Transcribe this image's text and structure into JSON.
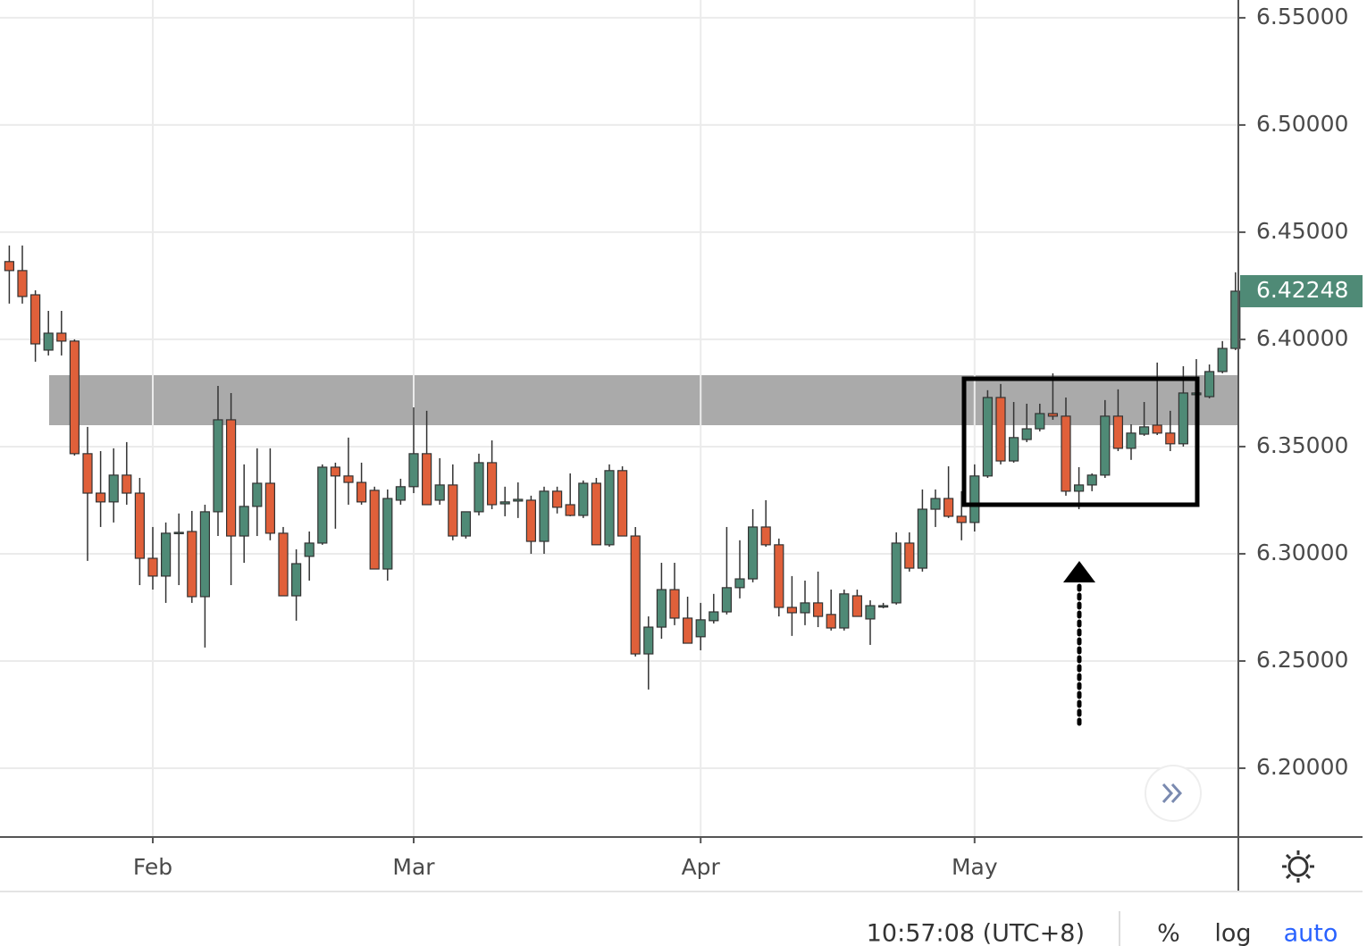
{
  "chart_data": {
    "type": "candlestick",
    "categories": [
      null,
      null,
      null,
      null,
      null,
      null,
      null,
      null,
      null,
      null,
      null,
      "Feb",
      null,
      null,
      null,
      null,
      null,
      null,
      null,
      null,
      null,
      null,
      null,
      null,
      null,
      null,
      null,
      null,
      null,
      null,
      null,
      "Mar",
      null,
      null,
      null,
      null,
      null,
      null,
      null,
      null,
      null,
      null,
      null,
      null,
      null,
      null,
      null,
      null,
      null,
      null,
      null,
      null,
      null,
      "Apr",
      null,
      null,
      null,
      null,
      null,
      null,
      null,
      null,
      null,
      null,
      null,
      null,
      null,
      null,
      null,
      null,
      null,
      null,
      null,
      null,
      "May",
      null,
      null,
      null,
      null,
      null,
      null,
      null,
      null,
      null,
      null,
      null,
      null,
      null,
      null,
      null,
      null,
      null,
      null,
      null,
      null
    ],
    "open": [
      6.4363,
      6.4321,
      6.4208,
      6.395,
      6.4029,
      6.3992,
      6.3467,
      6.3283,
      6.3242,
      6.3367,
      6.3283,
      6.2979,
      6.2896,
      6.3096,
      6.3104,
      6.28,
      6.3196,
      6.3625,
      6.3083,
      6.3221,
      6.3329,
      6.3096,
      6.2804,
      6.2988,
      6.305,
      6.3404,
      6.3363,
      6.3333,
      6.3296,
      6.2929,
      6.325,
      6.3313,
      6.3467,
      6.325,
      6.3321,
      6.3083,
      6.3196,
      6.3425,
      6.3233,
      6.3246,
      6.325,
      6.3058,
      6.3292,
      6.3229,
      6.3179,
      6.3329,
      6.3042,
      6.3388,
      6.3083,
      6.2533,
      6.2658,
      6.2833,
      6.27,
      6.2613,
      6.2688,
      6.2729,
      6.2842,
      6.2883,
      6.3125,
      6.3042,
      6.275,
      6.2725,
      6.2771,
      6.2717,
      6.2654,
      6.2804,
      6.2696,
      6.2754,
      6.2771,
      6.305,
      6.2933,
      6.3208,
      6.3258,
      6.3175,
      6.3146,
      6.3363,
      6.3729,
      6.3433,
      6.3533,
      6.3583,
      6.3654,
      6.3642,
      6.3292,
      6.3321,
      6.3367,
      6.3642,
      6.3492,
      6.3558,
      6.36,
      6.3563,
      6.3513,
      6.3742,
      6.3733,
      6.385,
      6.3958
    ],
    "high": [
      6.4438,
      6.4438,
      6.4229,
      6.4133,
      6.4133,
      6.4,
      6.3592,
      6.3479,
      6.3492,
      6.3521,
      6.3354,
      6.3125,
      6.3146,
      6.3188,
      6.32,
      6.3229,
      6.3783,
      6.375,
      6.3417,
      6.3492,
      6.3492,
      6.3125,
      6.3021,
      6.3104,
      6.3417,
      6.3425,
      6.3542,
      6.3425,
      6.3313,
      6.33,
      6.335,
      6.3683,
      6.3667,
      6.3446,
      6.3417,
      6.3196,
      6.3467,
      6.3529,
      6.3313,
      6.3333,
      6.3271,
      6.3313,
      6.3313,
      6.3375,
      6.3342,
      6.3354,
      6.3417,
      6.3408,
      6.3125,
      6.2708,
      6.2958,
      6.2958,
      6.28,
      6.2771,
      6.2813,
      6.3125,
      6.3063,
      6.3208,
      6.325,
      6.3071,
      6.2896,
      6.2875,
      6.2917,
      6.2833,
      6.2833,
      6.2833,
      6.2783,
      6.2771,
      6.31,
      6.31,
      6.33,
      6.33,
      6.3408,
      6.3292,
      6.3417,
      6.3763,
      6.3792,
      6.3708,
      6.37,
      6.37,
      6.3842,
      6.3729,
      6.3404,
      6.3375,
      6.3717,
      6.3767,
      6.3604,
      6.3708,
      6.3892,
      6.3667,
      6.3875,
      6.3908,
      6.3883,
      6.3992,
      6.4313
    ],
    "low": [
      6.4167,
      6.4167,
      6.3896,
      6.3925,
      6.3925,
      6.3458,
      6.2967,
      6.3125,
      6.3146,
      6.3229,
      6.2854,
      6.2833,
      6.2771,
      6.2854,
      6.2771,
      6.2563,
      6.3083,
      6.2854,
      6.2958,
      6.3083,
      6.3063,
      6.2804,
      6.2688,
      6.2875,
      6.3042,
      6.3117,
      6.3229,
      6.3229,
      6.2929,
      6.2875,
      6.3229,
      6.3283,
      6.3229,
      6.3229,
      6.3063,
      6.3071,
      6.3179,
      6.3208,
      6.3175,
      6.3167,
      6.3,
      6.3,
      6.3188,
      6.3175,
      6.3167,
      6.3042,
      6.3033,
      6.3083,
      6.2521,
      6.2367,
      6.2604,
      6.2667,
      6.2583,
      6.255,
      6.2675,
      6.2717,
      6.2792,
      6.2867,
      6.3033,
      6.2708,
      6.2617,
      6.2667,
      6.2658,
      6.2642,
      6.2642,
      6.2708,
      6.2575,
      6.2746,
      6.2763,
      6.2917,
      6.2917,
      6.3125,
      6.3167,
      6.3063,
      6.3104,
      6.3354,
      6.3417,
      6.3425,
      6.3521,
      6.3571,
      6.3625,
      6.3271,
      6.3208,
      6.3292,
      6.3354,
      6.3479,
      6.3438,
      6.355,
      6.3554,
      6.3479,
      6.35,
      6.3729,
      6.3725,
      6.3842,
      6.395
    ],
    "close": [
      6.4321,
      6.42,
      6.3979,
      6.4029,
      6.3992,
      6.3467,
      6.3283,
      6.3242,
      6.3367,
      6.3283,
      6.2979,
      6.2896,
      6.3096,
      6.31,
      6.28,
      6.3196,
      6.3625,
      6.3083,
      6.3221,
      6.3329,
      6.3096,
      6.2804,
      6.2954,
      6.305,
      6.3404,
      6.3363,
      6.3333,
      6.3242,
      6.2929,
      6.3258,
      6.3313,
      6.3467,
      6.3229,
      6.3321,
      6.3083,
      6.3196,
      6.3425,
      6.3229,
      6.3242,
      6.3254,
      6.3058,
      6.3292,
      6.3217,
      6.3179,
      6.3329,
      6.3042,
      6.3388,
      6.3083,
      6.2533,
      6.2658,
      6.2833,
      6.27,
      6.2583,
      6.2692,
      6.2729,
      6.2842,
      6.2883,
      6.3125,
      6.3042,
      6.275,
      6.2725,
      6.2771,
      6.2708,
      6.2654,
      6.2813,
      6.2708,
      6.2758,
      6.2758,
      6.305,
      6.2933,
      6.3208,
      6.3258,
      6.3175,
      6.3146,
      6.3363,
      6.3729,
      6.3433,
      6.3542,
      6.3583,
      6.3654,
      6.3642,
      6.3292,
      6.3321,
      6.3367,
      6.3642,
      6.3492,
      6.3563,
      6.3592,
      6.3563,
      6.3513,
      6.375,
      6.375,
      6.385,
      6.3958,
      6.42248
    ],
    "up_color": "#4f8a76",
    "down_color": "#e0603a",
    "ylim": [
      6.1679,
      6.5583
    ],
    "yticks": [
      {
        "value": 6.2,
        "label": "6.20000"
      },
      {
        "value": 6.25,
        "label": "6.25000"
      },
      {
        "value": 6.3,
        "label": "6.30000"
      },
      {
        "value": 6.35,
        "label": "6.35000"
      },
      {
        "value": 6.4,
        "label": "6.40000"
      },
      {
        "value": 6.45,
        "label": "6.45000"
      },
      {
        "value": 6.5,
        "label": "6.50000"
      },
      {
        "value": 6.55,
        "label": "6.55000"
      }
    ],
    "grid": true
  },
  "toolbar": {
    "time": "10:57:08 (UTC+8)",
    "percent": "%",
    "log": "log",
    "auto": "auto"
  }
}
